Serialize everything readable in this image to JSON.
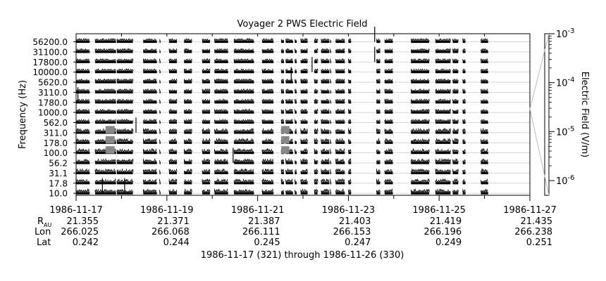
{
  "chart_data": {
    "type": "heatmap",
    "title": "Voyager 2 PWS Electric Field",
    "ylabel": "Frequency (Hz)",
    "colorbar_label": "Electric Field (V/m)",
    "channel_labels": [
      "56200.0",
      "31100.0",
      "17800.0",
      "10000.0",
      "5620.0",
      "3110.0",
      "1780.0",
      "1000.0",
      "562.0",
      "311.0",
      "178.0",
      "100.0",
      "56.2",
      "31.1",
      "17.8",
      "10.0"
    ],
    "channel_frequencies_hz": [
      56200,
      31100,
      17800,
      10000,
      5620,
      3110,
      1780,
      1000,
      562,
      311,
      178,
      100,
      56.2,
      31.1,
      17.8,
      10.0
    ],
    "x_range": [
      "1986-11-17",
      "1986-11-27"
    ],
    "x_tick_labels": [
      "1986-11-17",
      "1986-11-19",
      "1986-11-21",
      "1986-11-23",
      "1986-11-25",
      "1986-11-27"
    ],
    "colorbar": {
      "scale": "log",
      "range": [
        5e-07,
        0.001
      ],
      "ticks": [
        {
          "exp": "-3",
          "value": 0.001
        },
        {
          "exp": "-4",
          "value": 0.0001
        },
        {
          "exp": "-5",
          "value": 1e-05
        },
        {
          "exp": "-6",
          "value": 1e-06
        }
      ]
    },
    "data_segments_days": [
      [
        0.0,
        0.3
      ],
      [
        0.42,
        0.88
      ],
      [
        0.9,
        1.25
      ],
      [
        1.48,
        1.78
      ],
      [
        1.84,
        1.86
      ],
      [
        2.05,
        2.22
      ],
      [
        2.38,
        2.55
      ],
      [
        2.78,
        2.95
      ],
      [
        3.05,
        3.35
      ],
      [
        3.48,
        3.92
      ],
      [
        4.1,
        4.35
      ],
      [
        4.52,
        4.58
      ],
      [
        4.62,
        4.78
      ],
      [
        4.82,
        4.86
      ],
      [
        4.95,
        5.1
      ],
      [
        5.25,
        5.32
      ],
      [
        5.4,
        5.58
      ],
      [
        5.6,
        5.62
      ],
      [
        5.72,
        5.92
      ],
      [
        6.0,
        6.06
      ],
      [
        6.62,
        6.7
      ],
      [
        6.8,
        6.98
      ],
      [
        7.38,
        7.78
      ],
      [
        7.92,
        8.25
      ],
      [
        8.3,
        8.42
      ],
      [
        8.52,
        8.58
      ],
      [
        8.92,
        9.08
      ]
    ],
    "enhanced_bursts": [
      {
        "start_day": 0.65,
        "end_day": 0.85,
        "channels": [
          "311.0",
          "178.0",
          "100.0"
        ]
      },
      {
        "start_day": 4.52,
        "end_day": 4.7,
        "channels": [
          "311.0",
          "178.0",
          "100.0"
        ]
      }
    ],
    "grid": true,
    "colorbar_position": "right"
  },
  "x_axis_table": {
    "row_labels": {
      "r": "R",
      "r_sub": "AU",
      "lon": "Lon",
      "lat": "Lat"
    },
    "columns": [
      {
        "date": "1986-11-17",
        "r": "21.355",
        "lon": "266.025",
        "lat": "0.242"
      },
      {
        "date": "1986-11-19",
        "r": "21.371",
        "lon": "266.068",
        "lat": "0.244"
      },
      {
        "date": "1986-11-21",
        "r": "21.387",
        "lon": "266.111",
        "lat": "0.245"
      },
      {
        "date": "1986-11-23",
        "r": "21.403",
        "lon": "266.153",
        "lat": "0.247"
      },
      {
        "date": "1986-11-25",
        "r": "21.419",
        "lon": "266.196",
        "lat": "0.249"
      },
      {
        "date": "1986-11-27",
        "r": "21.435",
        "lon": "266.238",
        "lat": "0.251"
      }
    ]
  },
  "footer": {
    "range_text": "1986-11-17 (321) through 1986-11-26 (330)"
  }
}
